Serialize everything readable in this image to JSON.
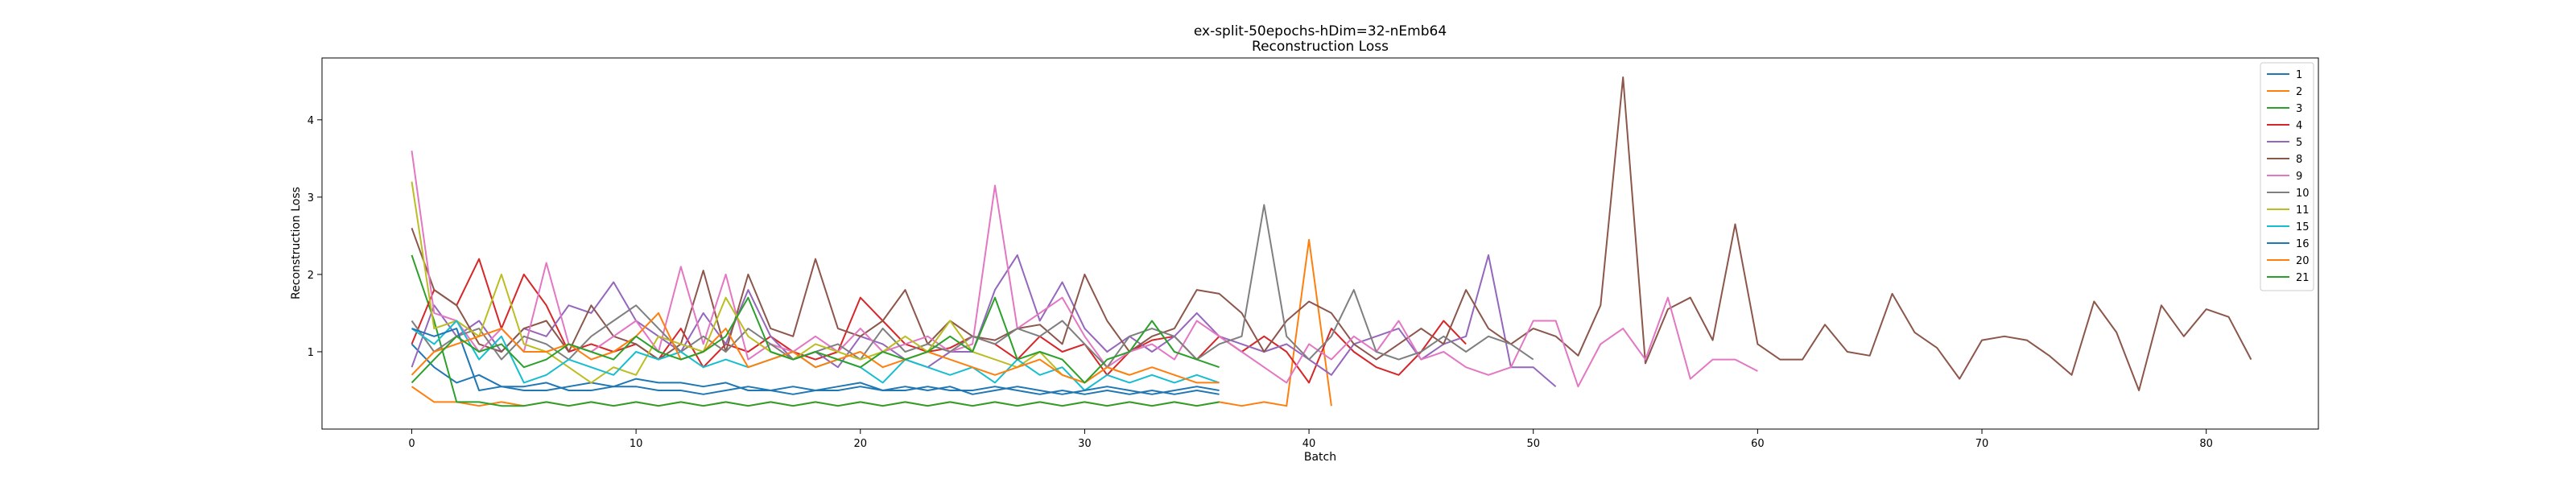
{
  "chart_data": {
    "type": "line",
    "title": "ex-split-50epochs-hDim=32-nEmb64",
    "subtitle": "Reconstruction Loss",
    "xlabel": "Batch",
    "ylabel": "Reconstruction Loss",
    "xlim": [
      -4,
      85
    ],
    "ylim": [
      0,
      4.8
    ],
    "xticks": [
      0,
      10,
      20,
      30,
      40,
      50,
      60,
      70,
      80
    ],
    "yticks": [
      1,
      2,
      3,
      4
    ],
    "grid": false,
    "legend_position": "top-right",
    "series": [
      {
        "name": "1",
        "color": "#1f77b4",
        "values": [
          1.1,
          0.8,
          0.6,
          0.7,
          0.55,
          0.5,
          0.5,
          0.55,
          0.6,
          0.55,
          0.65,
          0.6,
          0.6,
          0.55,
          0.6,
          0.5,
          0.5,
          0.55,
          0.5,
          0.5,
          0.55,
          0.5,
          0.5,
          0.55,
          0.5,
          0.5,
          0.55,
          0.5,
          0.45,
          0.5,
          0.45,
          0.5,
          0.45,
          0.5,
          0.45,
          0.5,
          0.45
        ]
      },
      {
        "name": "2",
        "color": "#ff7f0e",
        "values": [
          0.55,
          0.35,
          0.35,
          0.3,
          0.35,
          0.3,
          0.35,
          0.3,
          0.35,
          0.3,
          0.35,
          0.3,
          0.35,
          0.3,
          0.35,
          0.3,
          0.35,
          0.3,
          0.35,
          0.3,
          0.35,
          0.3,
          0.35,
          0.3,
          0.35,
          0.3,
          0.35,
          0.3,
          0.35,
          0.3,
          0.35,
          0.3,
          0.35,
          0.3,
          0.35,
          0.3,
          0.35,
          0.3,
          0.35,
          0.3,
          2.45,
          0.3
        ]
      },
      {
        "name": "3",
        "color": "#2ca02c",
        "values": [
          2.25,
          1.4,
          0.35,
          0.35,
          0.3,
          0.3,
          0.35,
          0.3,
          0.35,
          0.3,
          0.35,
          0.3,
          0.35,
          0.3,
          0.35,
          0.3,
          0.35,
          0.3,
          0.35,
          0.3,
          0.35,
          0.3,
          0.35,
          0.3,
          0.35,
          0.3,
          0.35,
          0.3,
          0.35,
          0.3,
          0.35,
          0.3,
          0.35,
          0.3,
          0.35,
          0.3,
          0.35
        ]
      },
      {
        "name": "4",
        "color": "#d62728",
        "values": [
          1.1,
          1.8,
          1.6,
          2.2,
          1.3,
          2.0,
          1.6,
          1.0,
          1.1,
          1.0,
          1.1,
          0.9,
          1.3,
          0.8,
          1.1,
          1.0,
          1.2,
          1.0,
          0.9,
          1.0,
          1.7,
          1.4,
          1.1,
          1.0,
          1.05,
          1.2,
          1.1,
          0.9,
          1.2,
          1.0,
          1.1,
          0.7,
          1.0,
          1.15,
          1.2,
          0.9,
          1.2,
          1.0,
          1.2,
          1.0,
          0.6,
          1.3,
          1.0,
          0.8,
          0.7,
          1.0,
          1.4,
          1.1
        ]
      },
      {
        "name": "5",
        "color": "#9467bd",
        "values": [
          0.8,
          1.6,
          1.2,
          1.4,
          1.0,
          1.3,
          1.2,
          1.6,
          1.5,
          1.9,
          1.4,
          1.2,
          1.0,
          1.5,
          1.1,
          1.8,
          1.2,
          0.9,
          1.0,
          0.8,
          1.2,
          1.1,
          0.9,
          0.8,
          1.0,
          1.0,
          1.8,
          2.25,
          1.4,
          1.9,
          1.3,
          1.0,
          1.2,
          1.0,
          1.2,
          1.5,
          1.2,
          1.1,
          1.0,
          1.1,
          0.9,
          0.7,
          1.1,
          1.2,
          1.3,
          0.9,
          1.1,
          1.2,
          2.25,
          0.8,
          0.8,
          0.55
        ]
      },
      {
        "name": "8",
        "color": "#8c564b",
        "values": [
          2.6,
          1.8,
          1.6,
          1.1,
          1.0,
          1.3,
          1.4,
          1.0,
          1.6,
          1.2,
          1.1,
          0.9,
          1.1,
          2.05,
          1.0,
          2.0,
          1.3,
          1.2,
          2.2,
          1.3,
          1.2,
          1.4,
          1.8,
          1.1,
          1.4,
          1.2,
          1.15,
          1.3,
          1.35,
          1.1,
          2.0,
          1.4,
          1.0,
          1.2,
          1.3,
          1.8,
          1.75,
          1.5,
          1.0,
          1.4,
          1.65,
          1.5,
          1.1,
          0.9,
          1.1,
          1.3,
          1.1,
          1.8,
          1.3,
          1.1,
          1.3,
          1.2,
          0.95,
          1.6,
          4.55,
          0.85,
          1.55,
          1.7,
          1.15,
          2.65,
          1.1,
          0.9,
          0.9,
          1.35,
          1.0,
          0.95,
          1.75,
          1.25,
          1.05,
          0.65,
          1.15,
          1.2,
          1.15,
          0.95,
          0.7,
          1.65,
          1.25,
          0.5,
          1.6,
          1.2,
          1.55,
          1.45,
          0.9
        ]
      },
      {
        "name": "9",
        "color": "#e377c2",
        "values": [
          3.6,
          1.5,
          1.4,
          1.0,
          1.3,
          1.0,
          2.15,
          1.1,
          1.0,
          1.2,
          1.4,
          1.0,
          2.1,
          1.1,
          2.0,
          0.9,
          1.1,
          1.0,
          1.2,
          1.0,
          1.3,
          1.0,
          1.1,
          1.2,
          1.0,
          1.1,
          3.15,
          1.3,
          1.5,
          1.7,
          1.2,
          0.8,
          1.0,
          1.1,
          0.9,
          1.4,
          1.2,
          1.0,
          0.8,
          0.6,
          1.1,
          0.9,
          1.2,
          1.0,
          1.4,
          0.9,
          1.0,
          0.8,
          0.7,
          0.8,
          1.4,
          1.4,
          0.55,
          1.1,
          1.3,
          0.9,
          1.7,
          0.65,
          0.9,
          0.9,
          0.75
        ]
      },
      {
        "name": "10",
        "color": "#7f7f7f",
        "values": [
          1.4,
          1.0,
          1.2,
          1.3,
          0.9,
          1.2,
          1.1,
          0.9,
          1.2,
          1.4,
          1.6,
          1.3,
          1.0,
          1.2,
          1.0,
          1.3,
          1.1,
          0.9,
          1.0,
          1.1,
          0.9,
          1.3,
          1.0,
          1.1,
          1.0,
          1.2,
          1.1,
          1.3,
          1.2,
          1.4,
          1.1,
          0.8,
          1.2,
          1.3,
          1.2,
          0.9,
          1.1,
          1.2,
          2.9,
          1.2,
          0.9,
          1.2,
          1.8,
          1.0,
          0.9,
          1.0,
          1.2,
          1.0,
          1.2,
          1.1,
          0.9
        ]
      },
      {
        "name": "11",
        "color": "#bcbd22",
        "values": [
          3.2,
          1.3,
          1.4,
          1.2,
          2.0,
          1.1,
          1.0,
          0.8,
          0.6,
          0.8,
          0.7,
          1.2,
          1.1,
          1.0,
          1.7,
          1.2,
          1.0,
          0.9,
          1.1,
          1.0,
          0.9,
          1.0,
          1.2,
          1.0,
          1.4,
          1.0,
          0.9,
          0.8,
          1.0,
          0.7,
          0.6,
          0.8,
          0.7
        ]
      },
      {
        "name": "15",
        "color": "#17becf",
        "values": [
          1.3,
          1.1,
          1.4,
          0.9,
          1.2,
          0.6,
          0.7,
          0.9,
          0.8,
          0.7,
          1.0,
          0.9,
          1.0,
          0.8,
          0.9,
          0.8,
          0.9,
          1.0,
          0.8,
          0.9,
          0.8,
          0.6,
          0.9,
          0.8,
          0.7,
          0.8,
          0.6,
          0.9,
          0.7,
          0.8,
          0.5,
          0.7,
          0.6,
          0.7,
          0.6,
          0.7,
          0.6
        ]
      },
      {
        "name": "16",
        "color": "#1f77b4",
        "values": [
          1.3,
          1.2,
          1.3,
          0.5,
          0.55,
          0.55,
          0.6,
          0.5,
          0.5,
          0.55,
          0.55,
          0.5,
          0.5,
          0.45,
          0.5,
          0.55,
          0.5,
          0.45,
          0.5,
          0.55,
          0.6,
          0.5,
          0.55,
          0.5,
          0.55,
          0.45,
          0.5,
          0.55,
          0.5,
          0.45,
          0.5,
          0.55,
          0.5,
          0.45,
          0.5,
          0.55,
          0.5
        ]
      },
      {
        "name": "20",
        "color": "#ff7f0e",
        "values": [
          0.7,
          1.0,
          1.1,
          1.2,
          1.3,
          1.0,
          1.0,
          1.1,
          0.9,
          1.0,
          1.2,
          1.5,
          0.9,
          1.0,
          1.3,
          0.8,
          0.9,
          1.0,
          0.8,
          0.9,
          1.0,
          0.8,
          0.9,
          1.0,
          0.9,
          0.8,
          0.7,
          0.8,
          0.9,
          0.7,
          0.6,
          0.8,
          0.7,
          0.8,
          0.7,
          0.6,
          0.6
        ]
      },
      {
        "name": "21",
        "color": "#2ca02c",
        "values": [
          0.6,
          0.9,
          1.2,
          1.0,
          1.1,
          0.8,
          0.9,
          1.1,
          1.0,
          0.9,
          1.2,
          1.0,
          0.9,
          1.0,
          1.2,
          1.7,
          1.0,
          0.9,
          1.0,
          0.9,
          0.8,
          1.0,
          0.9,
          1.0,
          1.2,
          1.0,
          1.7,
          0.9,
          1.0,
          0.9,
          0.6,
          0.9,
          1.0,
          1.4,
          1.0,
          0.9,
          0.8
        ]
      }
    ]
  }
}
